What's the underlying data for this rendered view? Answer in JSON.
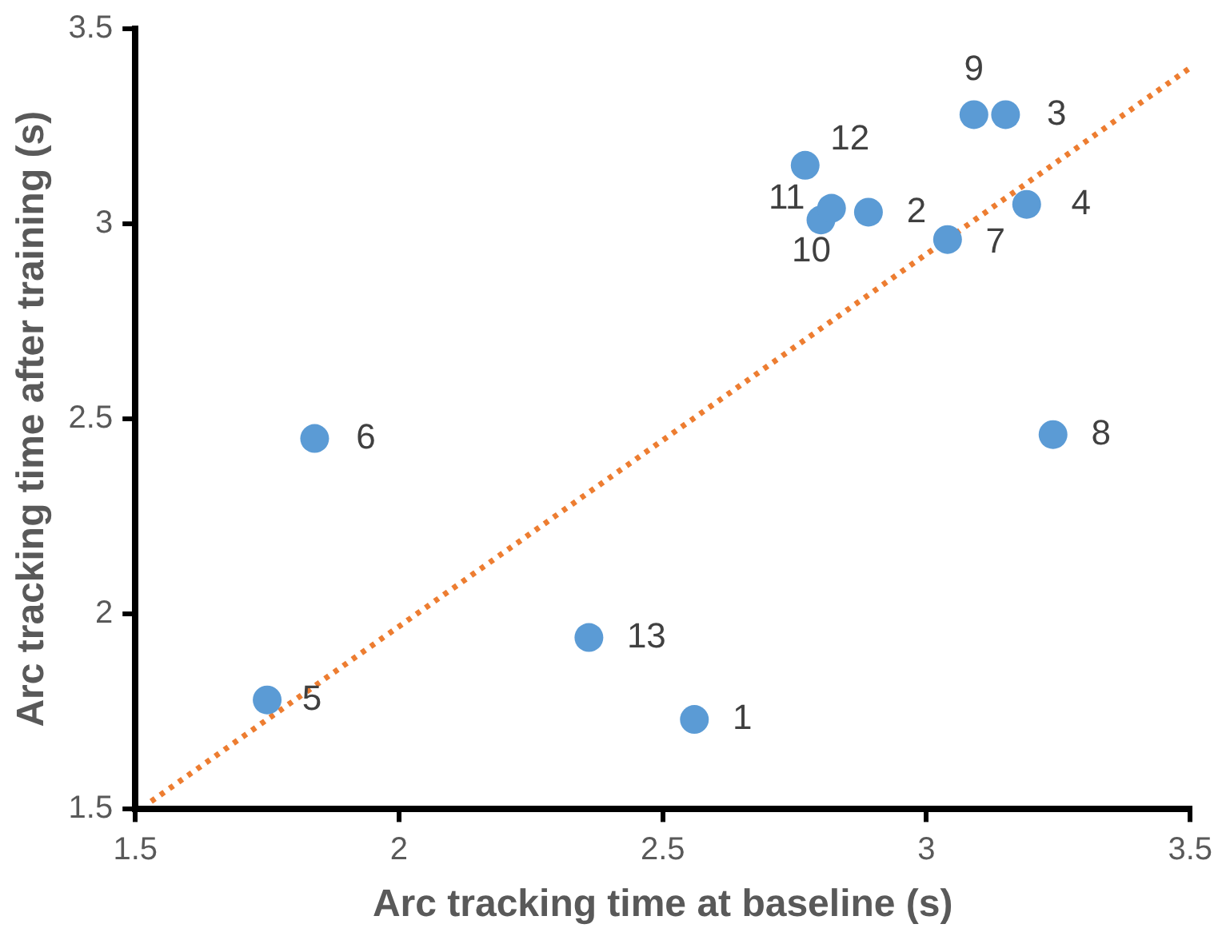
{
  "chart_data": {
    "type": "scatter",
    "xlabel": "Arc tracking time at baseline (s)",
    "ylabel": "Arc tracking time after training (s)",
    "xlim": [
      1.5,
      3.5
    ],
    "xticks": [
      {
        "value": 1.5,
        "label": "1.5"
      },
      2,
      {
        "value": 2.5,
        "label": "2.5"
      },
      3,
      {
        "value": 3.5,
        "label": "3.5"
      }
    ],
    "ylim": [
      1.5,
      3.5
    ],
    "yticks": [
      {
        "value": 1.5,
        "label": "1.5"
      },
      2,
      {
        "value": 2.5,
        "label": "2.5"
      },
      3,
      {
        "value": 3.5,
        "label": "3.5"
      }
    ],
    "annotations": [
      {
        "text": "1",
        "x": 2.56,
        "y": 1.73
      },
      {
        "text": "2",
        "x": 2.89,
        "y": 3.03
      },
      {
        "text": "3",
        "x": 3.15,
        "y": 3.28
      },
      {
        "text": "4",
        "x": 3.19,
        "y": 3.05
      },
      {
        "text": "5",
        "x": 1.75,
        "y": 1.78
      },
      {
        "text": "6",
        "x": 1.84,
        "y": 2.45
      },
      {
        "text": "7",
        "x": 3.04,
        "y": 2.96
      },
      {
        "text": "8",
        "x": 3.24,
        "y": 2.46
      },
      {
        "text": "9",
        "x": 3.09,
        "y": 3.28
      },
      {
        "text": "10",
        "x": 2.8,
        "y": 3.01
      },
      {
        "text": "11",
        "x": 2.82,
        "y": 3.04
      },
      {
        "text": "12",
        "x": 2.77,
        "y": 3.15
      },
      {
        "text": "13",
        "x": 2.36,
        "y": 1.94
      }
    ],
    "grid": false,
    "legend": false,
    "marker": "circle",
    "series": [
      {
        "type": "scatter",
        "color": "#5b9bd5",
        "x": [
          2.56,
          2.89,
          3.15,
          3.19,
          1.75,
          1.84,
          3.04,
          3.24,
          3.09,
          2.8,
          2.82,
          2.77,
          2.36
        ],
        "values": [
          1.73,
          3.03,
          3.28,
          3.05,
          1.78,
          2.45,
          2.96,
          2.46,
          3.28,
          3.01,
          3.04,
          3.15,
          1.94
        ]
      },
      {
        "type": "line",
        "color": "#ed7d31",
        "line_style": "dotted",
        "marker": "none",
        "x": [
          1.53,
          3.5
        ],
        "values": [
          1.52,
          3.4
        ]
      }
    ]
  }
}
